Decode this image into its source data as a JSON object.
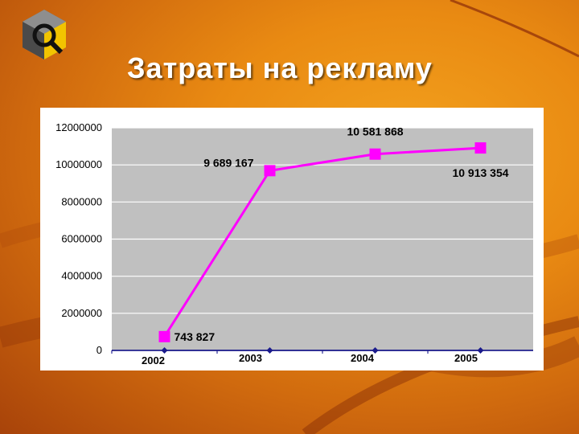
{
  "slide": {
    "title": "Затраты на рекламу"
  },
  "colors": {
    "series_main": "#ff00ff",
    "series_base": "#1a1a8c",
    "plot_bg": "#c0c0c0",
    "gridline": "#ffffff",
    "axis": "#000080"
  },
  "icons": {
    "logo": "hexagon-search-logo-icon"
  },
  "chart_data": {
    "type": "line",
    "title": "",
    "xlabel": "",
    "ylabel": "",
    "categories": [
      "2002",
      "2003",
      "2004",
      "2005"
    ],
    "ylim": [
      0,
      12000000
    ],
    "yticks": [
      "0",
      "2000000",
      "4000000",
      "6000000",
      "8000000",
      "10000000",
      "12000000"
    ],
    "grid": true,
    "legend": "none",
    "series": [
      {
        "values": [
          743827,
          9689167,
          10581868,
          10913354
        ],
        "data_labels": [
          "743 827",
          "9 689 167",
          "10 581 868",
          "10 913 354"
        ],
        "marker": "square"
      },
      {
        "values": [
          0,
          0,
          0,
          0
        ],
        "marker": "diamond"
      }
    ]
  }
}
